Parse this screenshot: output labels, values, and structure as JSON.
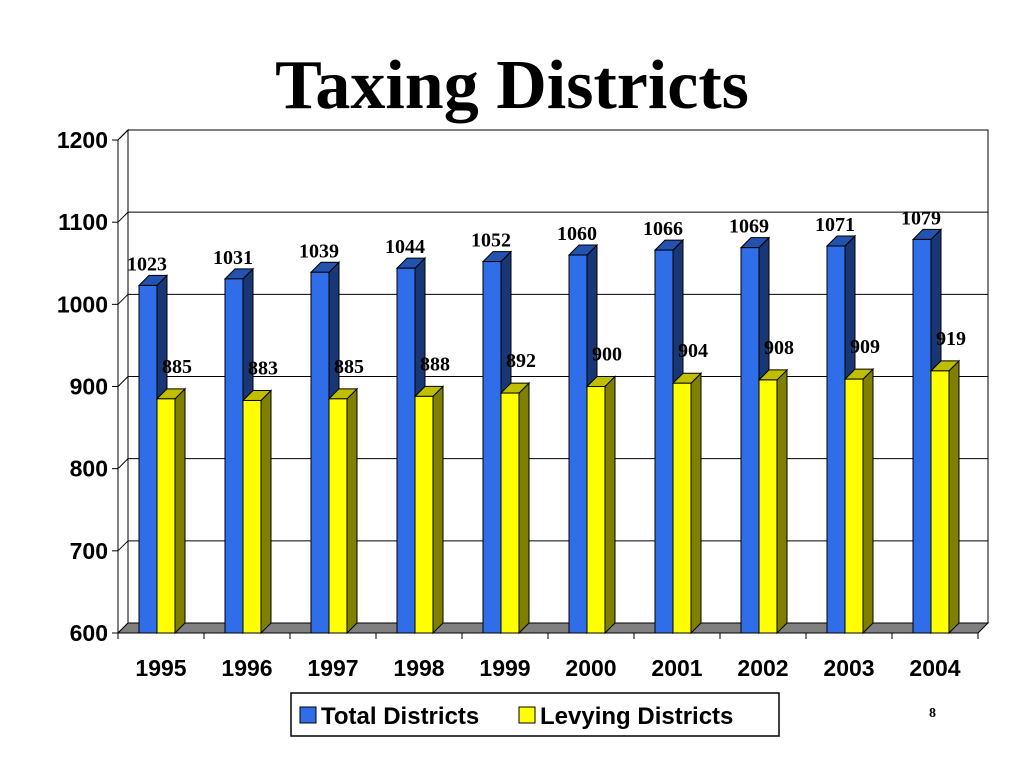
{
  "page_number": "8",
  "chart_data": {
    "type": "bar",
    "title": "Taxing Districts",
    "categories": [
      "1995",
      "1996",
      "1997",
      "1998",
      "1999",
      "2000",
      "2001",
      "2002",
      "2003",
      "2004"
    ],
    "series": [
      {
        "name": "Total Districts",
        "color": "#2f6ee8",
        "values": [
          1023,
          1031,
          1039,
          1044,
          1052,
          1060,
          1066,
          1069,
          1071,
          1079
        ]
      },
      {
        "name": "Levying Districts",
        "color": "#ffff00",
        "values": [
          885,
          883,
          885,
          888,
          892,
          900,
          904,
          908,
          909,
          919
        ]
      }
    ],
    "ylim": [
      600,
      1200
    ],
    "yticks": [
      "600",
      "700",
      "800",
      "900",
      "1000",
      "1100",
      "1200"
    ],
    "grid": true,
    "legend_position": "bottom",
    "style": "3d-bar"
  }
}
